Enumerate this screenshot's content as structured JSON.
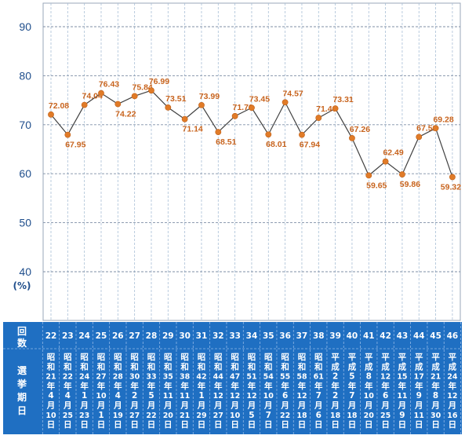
{
  "chart_data": {
    "type": "line",
    "y_axis": {
      "ticks": [
        "40",
        "50",
        "60",
        "70",
        "80",
        "90"
      ],
      "unit": "(%)",
      "ylim": [
        36,
        94
      ]
    },
    "grid": true,
    "categories_header": {
      "row1_label": "回数",
      "row2_label": "選挙期日"
    },
    "categories": [
      {
        "no": "22",
        "date": [
          "昭",
          "和",
          "21",
          "年",
          "4",
          "月",
          "10",
          "日"
        ]
      },
      {
        "no": "23",
        "date": [
          "昭",
          "和",
          "22",
          "年",
          "4",
          "月",
          "25",
          "日"
        ]
      },
      {
        "no": "24",
        "date": [
          "昭",
          "和",
          "24",
          "年",
          "1",
          "月",
          "23",
          "日"
        ]
      },
      {
        "no": "25",
        "date": [
          "昭",
          "和",
          "27",
          "年",
          "10",
          "月",
          "1",
          "日"
        ]
      },
      {
        "no": "26",
        "date": [
          "昭",
          "和",
          "28",
          "年",
          "4",
          "月",
          "19",
          "日"
        ]
      },
      {
        "no": "27",
        "date": [
          "昭",
          "和",
          "30",
          "年",
          "2",
          "月",
          "27",
          "日"
        ]
      },
      {
        "no": "28",
        "date": [
          "昭",
          "和",
          "33",
          "年",
          "5",
          "月",
          "22",
          "日"
        ]
      },
      {
        "no": "29",
        "date": [
          "昭",
          "和",
          "35",
          "年",
          "11",
          "月",
          "20",
          "日"
        ]
      },
      {
        "no": "30",
        "date": [
          "昭",
          "和",
          "38",
          "年",
          "11",
          "月",
          "21",
          "日"
        ]
      },
      {
        "no": "31",
        "date": [
          "昭",
          "和",
          "42",
          "年",
          "1",
          "月",
          "29",
          "日"
        ]
      },
      {
        "no": "32",
        "date": [
          "昭",
          "和",
          "44",
          "年",
          "12",
          "月",
          "27",
          "日"
        ]
      },
      {
        "no": "33",
        "date": [
          "昭",
          "和",
          "47",
          "年",
          "12",
          "月",
          "10",
          "日"
        ]
      },
      {
        "no": "34",
        "date": [
          "昭",
          "和",
          "51",
          "年",
          "12",
          "月",
          "5",
          "日"
        ]
      },
      {
        "no": "35",
        "date": [
          "昭",
          "和",
          "54",
          "年",
          "10",
          "月",
          "7",
          "日"
        ]
      },
      {
        "no": "36",
        "date": [
          "昭",
          "和",
          "55",
          "年",
          "6",
          "月",
          "22",
          "日"
        ]
      },
      {
        "no": "37",
        "date": [
          "昭",
          "和",
          "58",
          "年",
          "12",
          "月",
          "18",
          "日"
        ]
      },
      {
        "no": "38",
        "date": [
          "昭",
          "和",
          "61",
          "年",
          "7",
          "月",
          "6",
          "日"
        ]
      },
      {
        "no": "39",
        "date": [
          "平",
          "成",
          "2",
          "年",
          "2",
          "月",
          "18",
          "日"
        ]
      },
      {
        "no": "40",
        "date": [
          "平",
          "成",
          "5",
          "年",
          "7",
          "月",
          "18",
          "日"
        ]
      },
      {
        "no": "41",
        "date": [
          "平",
          "成",
          "8",
          "年",
          "10",
          "月",
          "20",
          "日"
        ]
      },
      {
        "no": "42",
        "date": [
          "平",
          "成",
          "12",
          "年",
          "6",
          "月",
          "25",
          "日"
        ]
      },
      {
        "no": "43",
        "date": [
          "平",
          "成",
          "15",
          "年",
          "11",
          "月",
          "9",
          "日"
        ]
      },
      {
        "no": "44",
        "date": [
          "平",
          "成",
          "17",
          "年",
          "9",
          "月",
          "11",
          "日"
        ]
      },
      {
        "no": "45",
        "date": [
          "平",
          "成",
          "21",
          "年",
          "8",
          "月",
          "30",
          "日"
        ]
      },
      {
        "no": "46",
        "date": [
          "平",
          "成",
          "24",
          "年",
          "12",
          "月",
          "16",
          "日"
        ]
      }
    ],
    "series": [
      {
        "values": [
          72.08,
          67.95,
          74.04,
          76.43,
          74.22,
          75.84,
          76.99,
          73.51,
          71.14,
          73.99,
          68.51,
          71.76,
          73.45,
          68.01,
          74.57,
          67.94,
          71.4,
          73.31,
          67.26,
          59.65,
          62.49,
          59.86,
          67.51,
          69.28,
          59.32
        ],
        "labels": [
          "72.08",
          "67.95",
          "74.04",
          "76.43",
          "74.22",
          "75.84",
          "76.99",
          "73.51",
          "71.14",
          "73.99",
          "68.51",
          "71.76",
          "73.45",
          "68.01",
          "74.57",
          "67.94",
          "71.40",
          "73.31",
          "67.26",
          "59.65",
          "62.49",
          "59.86",
          "67.51",
          "69.28",
          "59.32"
        ]
      }
    ],
    "colors": {
      "line": "#404040",
      "marker": "#e07b28",
      "data_label": "#c8641e",
      "tick_text": "#1f4e8c",
      "band": "#1f6fc2",
      "grid_v": "#a9bfd6",
      "grid_h": "#7f8fa6"
    }
  }
}
